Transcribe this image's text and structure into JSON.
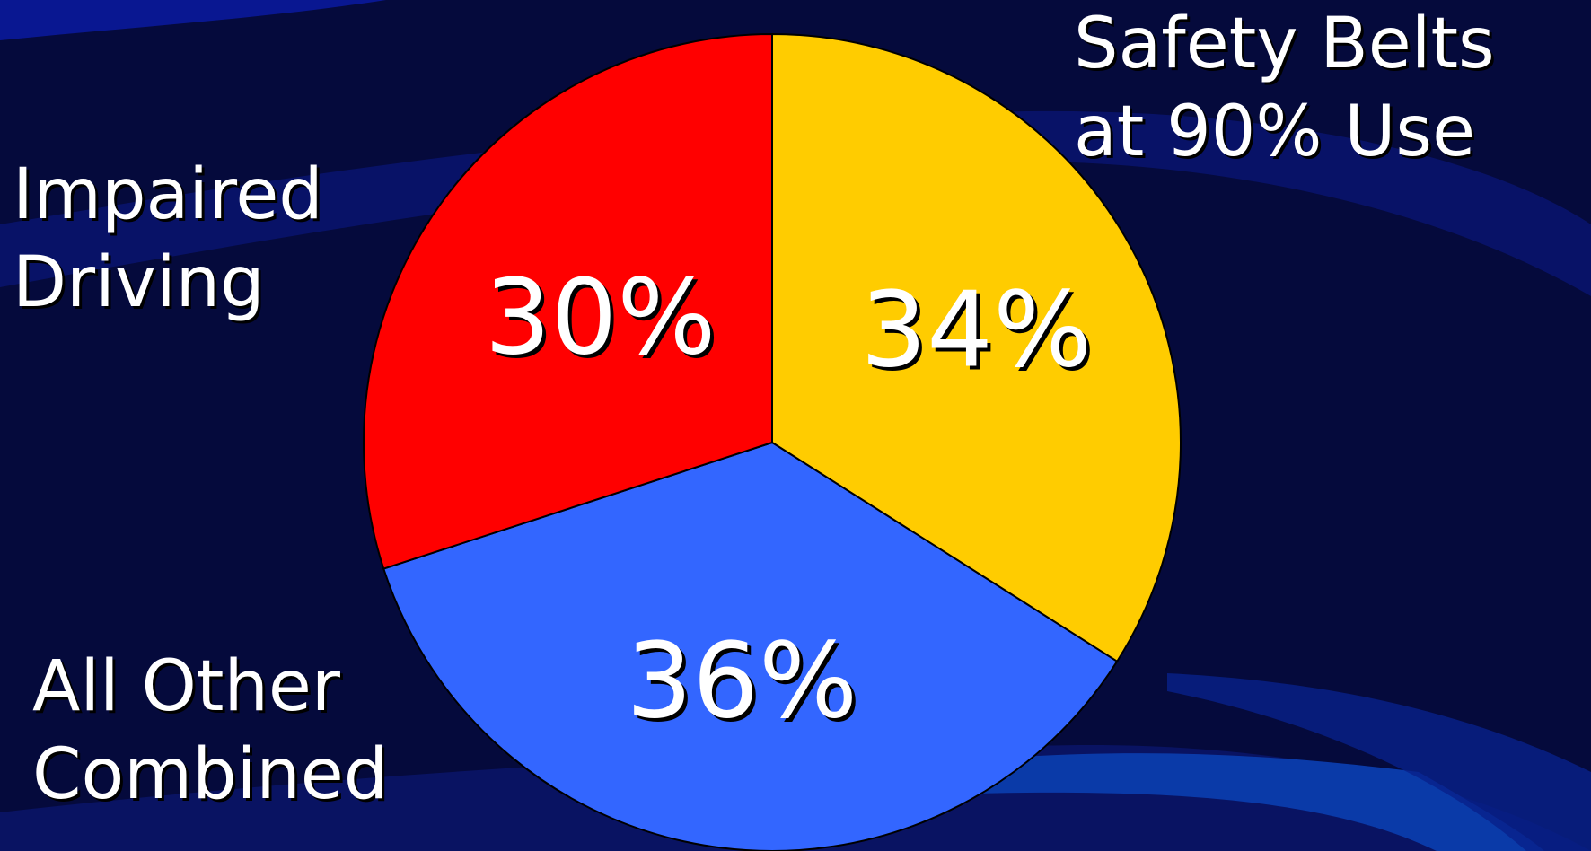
{
  "colors": {
    "background": "#050a3c",
    "wave_dark": "#0a1466",
    "wave_mid": "#1a2fa0",
    "wave_bright": "#0a3aa8"
  },
  "chart_data": {
    "type": "pie",
    "slices": [
      {
        "label_lines": [
          "Safety Belts",
          "at 90% Use"
        ],
        "value": 34,
        "value_label": "34%",
        "color": "#ffcc00"
      },
      {
        "label_lines": [
          "All Other",
          "Combined"
        ],
        "value": 36,
        "value_label": "36%",
        "color": "#3366ff"
      },
      {
        "label_lines": [
          "Impaired",
          "Driving"
        ],
        "value": 30,
        "value_label": "30%",
        "color": "#ff0000"
      }
    ],
    "start_angle": "12 o'clock",
    "direction": "clockwise"
  }
}
